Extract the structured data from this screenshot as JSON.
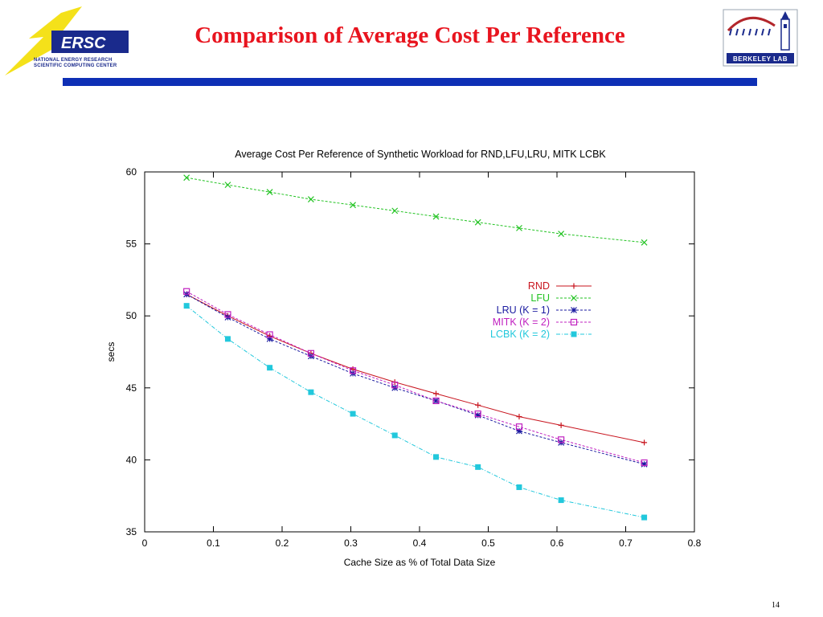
{
  "slide": {
    "title": "Comparison of Average Cost Per Reference",
    "page_number": "14"
  },
  "logos": {
    "nersc": {
      "text": "ERSC",
      "subtitle_line1": "NATIONAL ENERGY RESEARCH",
      "subtitle_line2": "SCIENTIFIC COMPUTING CENTER"
    },
    "berkeley": {
      "text": "BERKELEY LAB"
    }
  },
  "colors": {
    "title": "#e8141e",
    "header_bar": "#0e2fb5"
  },
  "chart_data": {
    "type": "line",
    "title": "Average Cost Per Reference of Synthetic Workload for RND,LFU,LRU, MITK  LCBK",
    "xlabel": "Cache Size as % of Total Data Size",
    "ylabel": "secs",
    "xlim": [
      0,
      0.8
    ],
    "ylim": [
      35,
      60
    ],
    "xticks": [
      "0",
      "0.1",
      "0.2",
      "0.3",
      "0.4",
      "0.5",
      "0.6",
      "0.7",
      "0.8"
    ],
    "yticks": [
      "35",
      "40",
      "45",
      "50",
      "55",
      "60"
    ],
    "grid": false,
    "legend_position": "top-right",
    "x": [
      0.061,
      0.121,
      0.182,
      0.242,
      0.303,
      0.364,
      0.424,
      0.485,
      0.545,
      0.606,
      0.727
    ],
    "series": [
      {
        "name": "RND",
        "color": "#c8141e",
        "marker": "plus",
        "dash": "solid",
        "values": [
          51.5,
          50.0,
          48.6,
          47.4,
          46.3,
          45.4,
          44.6,
          43.8,
          43.0,
          42.4,
          41.2
        ]
      },
      {
        "name": "LFU",
        "color": "#22c322",
        "marker": "x",
        "dash": "dashed",
        "values": [
          59.6,
          59.1,
          58.6,
          58.1,
          57.7,
          57.3,
          56.9,
          56.5,
          56.1,
          55.7,
          55.1
        ]
      },
      {
        "name": "LRU (K = 1)",
        "color": "#1a1aa0",
        "marker": "star",
        "dash": "dashed",
        "values": [
          51.5,
          49.9,
          48.4,
          47.2,
          46.0,
          45.0,
          44.1,
          43.1,
          42.0,
          41.2,
          39.7
        ]
      },
      {
        "name": "MITK (K = 2)",
        "color": "#c020c0",
        "marker": "square-open",
        "dash": "dashed",
        "values": [
          51.7,
          50.1,
          48.7,
          47.4,
          46.2,
          45.2,
          44.1,
          43.2,
          42.3,
          41.4,
          39.8
        ]
      },
      {
        "name": "LCBK (K = 2)",
        "color": "#22c8dc",
        "marker": "square-filled",
        "dash": "dashdot",
        "values": [
          50.7,
          48.4,
          46.4,
          44.7,
          43.2,
          41.7,
          40.2,
          39.5,
          38.1,
          37.2,
          36.0
        ]
      }
    ]
  }
}
